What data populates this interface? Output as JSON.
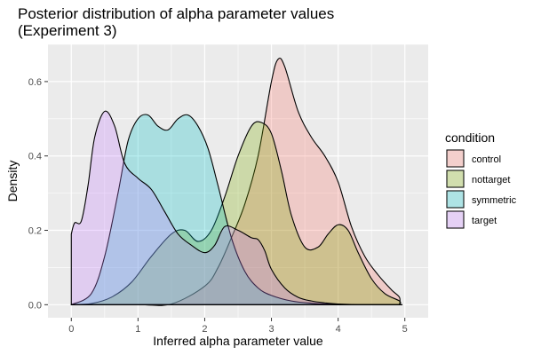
{
  "chart_data": {
    "type": "area",
    "title_lines": [
      "Posterior distribution of alpha parameter values",
      "(Experiment 3)"
    ],
    "xlabel": "Inferred alpha parameter value",
    "ylabel": "Density",
    "xlim": [
      -0.35,
      5.35
    ],
    "ylim": [
      -0.035,
      0.7
    ],
    "x_ticks": [
      0,
      1,
      2,
      3,
      4,
      5
    ],
    "x_tick_labels": [
      "0",
      "1",
      "2",
      "3",
      "4",
      "5"
    ],
    "y_ticks": [
      0.0,
      0.2,
      0.4,
      0.6
    ],
    "y_tick_labels": [
      "0.0",
      "0.2",
      "0.4",
      "0.6"
    ],
    "grid": true,
    "legend_title": "condition",
    "legend_position": "right",
    "fill_opacity": 0.28,
    "series": [
      {
        "name": "control",
        "color": "#F8766D",
        "x": [
          0.0,
          1.0,
          1.5,
          2.0,
          2.2,
          2.4,
          2.6,
          2.8,
          3.0,
          3.1,
          3.2,
          3.4,
          3.6,
          3.8,
          4.0,
          4.2,
          4.4,
          4.6,
          4.8,
          4.92,
          4.92
        ],
        "values": [
          0.0,
          0.0,
          0.002,
          0.05,
          0.1,
          0.18,
          0.27,
          0.4,
          0.6,
          0.66,
          0.64,
          0.52,
          0.45,
          0.4,
          0.33,
          0.21,
          0.13,
          0.08,
          0.04,
          0.02,
          0.0
        ]
      },
      {
        "name": "nottarget",
        "color": "#7CAE00",
        "x": [
          0.0,
          0.3,
          0.6,
          0.9,
          1.2,
          1.5,
          1.7,
          1.9,
          2.1,
          2.3,
          2.5,
          2.7,
          2.85,
          3.0,
          3.15,
          3.3,
          3.5,
          3.7,
          3.85,
          4.0,
          4.15,
          4.3,
          4.5,
          4.7,
          4.92,
          4.92
        ],
        "values": [
          0.0,
          0.003,
          0.02,
          0.06,
          0.13,
          0.19,
          0.2,
          0.17,
          0.2,
          0.29,
          0.4,
          0.48,
          0.49,
          0.46,
          0.36,
          0.24,
          0.155,
          0.155,
          0.19,
          0.215,
          0.2,
          0.14,
          0.07,
          0.03,
          0.01,
          0.0
        ]
      },
      {
        "name": "symmetric",
        "color": "#00BFC4",
        "x": [
          0.0,
          0.3,
          0.5,
          0.7,
          0.85,
          1.0,
          1.15,
          1.3,
          1.45,
          1.6,
          1.75,
          1.9,
          2.05,
          2.2,
          2.4,
          2.6,
          2.8,
          3.0,
          3.3,
          3.6,
          4.0,
          4.4,
          4.92,
          4.92
        ],
        "values": [
          0.0,
          0.03,
          0.13,
          0.3,
          0.44,
          0.5,
          0.51,
          0.48,
          0.47,
          0.5,
          0.51,
          0.48,
          0.42,
          0.32,
          0.18,
          0.09,
          0.045,
          0.025,
          0.01,
          0.004,
          0.001,
          0.0,
          0.0,
          0.0
        ]
      },
      {
        "name": "target",
        "color": "#C77CFF",
        "x": [
          0.0,
          0.05,
          0.15,
          0.25,
          0.35,
          0.5,
          0.65,
          0.8,
          1.0,
          1.2,
          1.4,
          1.6,
          1.8,
          2.0,
          2.15,
          2.3,
          2.5,
          2.7,
          2.8,
          2.9,
          3.0,
          3.2,
          3.4,
          3.6,
          3.8,
          4.0,
          4.4,
          4.92,
          4.92
        ],
        "values": [
          0.19,
          0.22,
          0.225,
          0.32,
          0.45,
          0.52,
          0.48,
          0.38,
          0.34,
          0.31,
          0.25,
          0.19,
          0.16,
          0.14,
          0.16,
          0.21,
          0.2,
          0.18,
          0.175,
          0.145,
          0.095,
          0.045,
          0.02,
          0.01,
          0.005,
          0.002,
          0.0,
          0.0,
          0.0
        ]
      }
    ]
  }
}
